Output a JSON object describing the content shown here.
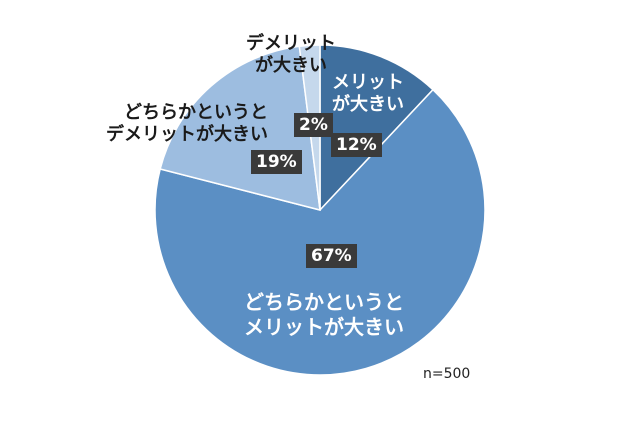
{
  "chart_data": {
    "type": "pie",
    "slices": [
      {
        "label": "メリットが大きい",
        "label_lines": [
          "メリット",
          "が大きい"
        ],
        "value": 12,
        "value_label": "12%",
        "color": "#3f6f9e"
      },
      {
        "label": "どちらかというとメリットが大きい",
        "label_lines": [
          "どちらかというと",
          "メリットが大きい"
        ],
        "value": 67,
        "value_label": "67%",
        "color": "#5b8fc4"
      },
      {
        "label": "どちらかというとデメリットが大きい",
        "label_lines": [
          "どちらかというと",
          "デメリットが大きい"
        ],
        "value": 19,
        "value_label": "19%",
        "color": "#9dbde0"
      },
      {
        "label": "デメリットが大きい",
        "label_lines": [
          "デメリット",
          "が大きい"
        ],
        "value": 2,
        "value_label": "2%",
        "color": "#c5d8ec"
      }
    ],
    "start_angle": "top, clockwise",
    "legend": "none",
    "note": "n=500"
  }
}
